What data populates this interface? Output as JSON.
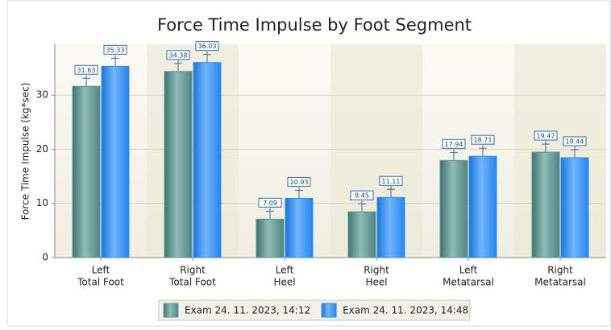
{
  "chart_data": {
    "type": "bar",
    "title": "Force Time Impulse by Foot Segment",
    "y_label": "Force Time Impulse (kg*sec)",
    "categories": [
      [
        "Left",
        "Total Foot"
      ],
      [
        "Right",
        "Total Foot"
      ],
      [
        "Left",
        "Heel"
      ],
      [
        "Right",
        "Heel"
      ],
      [
        "Left",
        "Metatarsal"
      ],
      [
        "Right",
        "Metatarsal"
      ]
    ],
    "series": [
      {
        "name": "Exam 24. 11. 2023, 14:12",
        "color": "#5f9490",
        "values": [
          31.63,
          34.38,
          7.09,
          8.45,
          17.94,
          19.47
        ]
      },
      {
        "name": "Exam 24. 11. 2023, 14:48",
        "color": "#2e8ef0",
        "values": [
          35.33,
          36.03,
          10.93,
          11.11,
          18.71,
          18.44
        ]
      }
    ],
    "ylim": [
      0,
      39.4
    ],
    "yticks": [
      0,
      10,
      20,
      30
    ],
    "grid": true,
    "legend": "bottom"
  }
}
